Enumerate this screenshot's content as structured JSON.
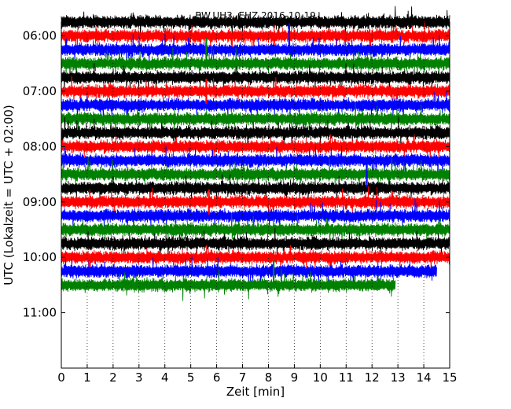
{
  "chart_data": {
    "type": "line",
    "title": "BW.UH3..EHZ 2016-10-19",
    "xlabel": "Zeit  [min]",
    "ylabel": "UTC (Lokalzeit = UTC + 02:00)",
    "xlim": [
      0,
      15
    ],
    "xticks": [
      0,
      1,
      2,
      3,
      4,
      5,
      6,
      7,
      8,
      9,
      10,
      11,
      12,
      13,
      14,
      15
    ],
    "xtick_labels": [
      "0",
      "1",
      "2",
      "3",
      "4",
      "5",
      "6",
      "7",
      "8",
      "9",
      "10",
      "11",
      "12",
      "13",
      "14",
      "15"
    ],
    "ylim_minutes": [
      345,
      720
    ],
    "y_inverted": true,
    "yticks": [
      {
        "label": "06:00",
        "minutes": 360
      },
      {
        "label": "07:00",
        "minutes": 420
      },
      {
        "label": "08:00",
        "minutes": 480
      },
      {
        "label": "09:00",
        "minutes": 540
      },
      {
        "label": "10:00",
        "minutes": 600
      },
      {
        "label": "11:00",
        "minutes": 660
      }
    ],
    "x_grid": "dotted",
    "trace_interval_min": 15,
    "color_cycle": [
      "#000000",
      "#ff0000",
      "#0000ff",
      "#008000"
    ],
    "series": [
      {
        "start": "05:45",
        "end_min": 15,
        "color": "#000000"
      },
      {
        "start": "06:00",
        "end_min": 15,
        "color": "#ff0000"
      },
      {
        "start": "06:15",
        "end_min": 15,
        "color": "#0000ff"
      },
      {
        "start": "06:30",
        "end_min": 15,
        "color": "#008000"
      },
      {
        "start": "06:45",
        "end_min": 15,
        "color": "#000000"
      },
      {
        "start": "07:00",
        "end_min": 15,
        "color": "#ff0000"
      },
      {
        "start": "07:15",
        "end_min": 15,
        "color": "#0000ff"
      },
      {
        "start": "07:30",
        "end_min": 15,
        "color": "#008000"
      },
      {
        "start": "07:45",
        "end_min": 15,
        "color": "#000000"
      },
      {
        "start": "08:00",
        "end_min": 15,
        "color": "#ff0000"
      },
      {
        "start": "08:15",
        "end_min": 15,
        "color": "#0000ff"
      },
      {
        "start": "08:30",
        "end_min": 15,
        "color": "#008000"
      },
      {
        "start": "08:45",
        "end_min": 15,
        "color": "#000000"
      },
      {
        "start": "09:00",
        "end_min": 15,
        "color": "#ff0000"
      },
      {
        "start": "09:15",
        "end_min": 15,
        "color": "#0000ff"
      },
      {
        "start": "09:30",
        "end_min": 15,
        "color": "#008000"
      },
      {
        "start": "09:45",
        "end_min": 15,
        "color": "#000000"
      },
      {
        "start": "10:00",
        "end_min": 15,
        "color": "#ff0000"
      },
      {
        "start": "10:15",
        "end_min": 14.5,
        "color": "#0000ff"
      },
      {
        "start": "10:30",
        "end_min": 12.9,
        "color": "#008000"
      }
    ],
    "events": [
      {
        "time": "06:03",
        "x_min": 8.8,
        "color": "#0000ff"
      },
      {
        "time": "06:22",
        "x_min": 5.6,
        "color": "#008000"
      },
      {
        "time": "07:03",
        "x_min": 5.6,
        "color": "#ff0000"
      },
      {
        "time": "08:44",
        "x_min": 11.8,
        "color": "#0000ff"
      },
      {
        "time": "09:08",
        "x_min": 5.7,
        "color": "#ff0000"
      },
      {
        "time": "10:18",
        "x_min": 8.2,
        "color": "#008000"
      }
    ]
  }
}
